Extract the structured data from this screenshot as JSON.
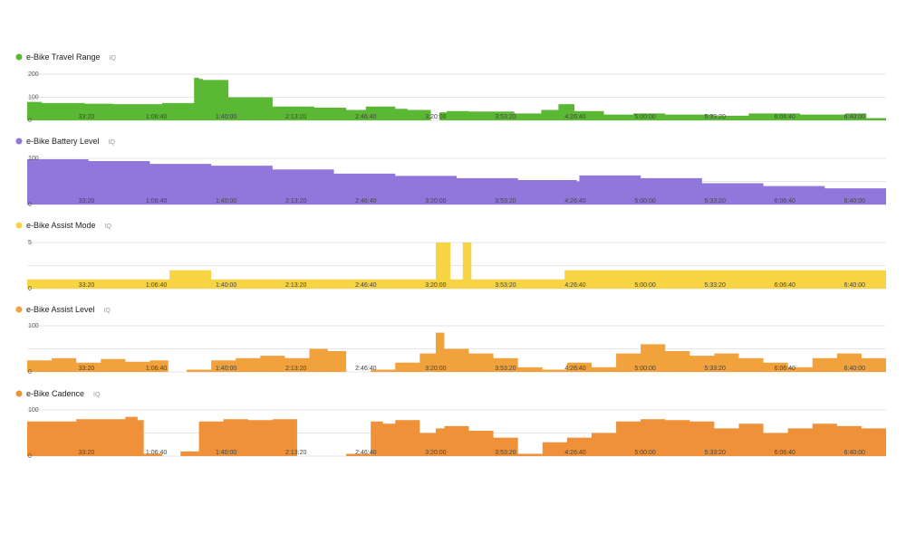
{
  "chart_data": [
    {
      "type": "area",
      "title": "e-Bike Travel Range",
      "badge": "IQ",
      "color": "#5bb834",
      "ylim": [
        0,
        200
      ],
      "yticks": [
        "0",
        "100",
        "200"
      ],
      "xticks": [
        "33:20",
        "1:06:40",
        "1:40:00",
        "2:13:20",
        "2:46:40",
        "3:20:00",
        "3:53:20",
        "4:26:40",
        "5:00:00",
        "5:33:20",
        "6:06:40",
        "6:40:00"
      ],
      "xlim": [
        0,
        7000
      ],
      "x": [
        0,
        120,
        470,
        700,
        1100,
        1360,
        1400,
        1430,
        1640,
        2000,
        2340,
        2600,
        2760,
        3000,
        3100,
        3290,
        3360,
        3420,
        3600,
        3970,
        4190,
        4330,
        4460,
        4700,
        4940,
        5200,
        5600,
        5880,
        6300,
        6670,
        6840,
        7000
      ],
      "values": [
        80,
        75,
        72,
        70,
        75,
        185,
        180,
        175,
        100,
        60,
        55,
        45,
        60,
        50,
        45,
        0,
        35,
        40,
        38,
        30,
        45,
        70,
        40,
        25,
        30,
        25,
        20,
        30,
        25,
        30,
        10,
        40
      ]
    },
    {
      "type": "area",
      "title": "e-Bike Battery Level",
      "badge": "IQ",
      "color": "#9176dc",
      "ylim": [
        0,
        100
      ],
      "yticks": [
        "0",
        "100"
      ],
      "xticks": [
        "33:20",
        "1:06:40",
        "1:40:00",
        "2:13:20",
        "2:46:40",
        "3:20:00",
        "3:53:20",
        "4:26:40",
        "5:00:00",
        "5:33:20",
        "6:06:40",
        "6:40:00"
      ],
      "xlim": [
        0,
        7000
      ],
      "x": [
        0,
        500,
        1000,
        1500,
        2000,
        2500,
        3000,
        3500,
        4000,
        4480,
        4500,
        5000,
        5500,
        6000,
        6500,
        7000
      ],
      "values": [
        98,
        94,
        88,
        84,
        76,
        67,
        62,
        57,
        53,
        50,
        63,
        57,
        46,
        40,
        35,
        28
      ]
    },
    {
      "type": "area",
      "title": "e-Bike Assist Mode",
      "badge": "IQ",
      "color": "#f7d443",
      "ylim": [
        0,
        5
      ],
      "yticks": [
        "0",
        "5"
      ],
      "xticks": [
        "33:20",
        "1:06:40",
        "1:40:00",
        "2:13:20",
        "2:46:40",
        "3:20:00",
        "3:53:20",
        "4:26:40",
        "5:00:00",
        "5:33:20",
        "6:06:40",
        "6:40:00"
      ],
      "xlim": [
        0,
        7000
      ],
      "x": [
        0,
        1160,
        1300,
        1500,
        2000,
        2600,
        3200,
        3330,
        3380,
        3450,
        3550,
        3620,
        3800,
        4200,
        4380,
        4650,
        5000,
        5500,
        6000,
        6700,
        7000
      ],
      "values": [
        1,
        2,
        2,
        1,
        1,
        1,
        1,
        5,
        5,
        1,
        5,
        1,
        1,
        1,
        2,
        2,
        2,
        2,
        2,
        2,
        1
      ]
    },
    {
      "type": "area",
      "title": "e-Bike Assist Level",
      "badge": "IQ",
      "color": "#f1a23c",
      "ylim": [
        0,
        100
      ],
      "yticks": [
        "0",
        "100"
      ],
      "xticks": [
        "33:20",
        "1:06:40",
        "1:40:00",
        "2:13:20",
        "2:46:40",
        "3:20:00",
        "3:53:20",
        "4:26:40",
        "5:00:00",
        "5:33:20",
        "6:06:40",
        "6:40:00"
      ],
      "xlim": [
        0,
        7000
      ],
      "x": [
        0,
        200,
        400,
        600,
        800,
        1000,
        1150,
        1300,
        1500,
        1700,
        1900,
        2100,
        2300,
        2450,
        2600,
        2800,
        3000,
        3200,
        3330,
        3400,
        3600,
        3800,
        4000,
        4200,
        4400,
        4600,
        4800,
        5000,
        5200,
        5400,
        5600,
        5800,
        6000,
        6200,
        6400,
        6600,
        6800,
        7000
      ],
      "values": [
        25,
        30,
        20,
        28,
        22,
        25,
        0,
        5,
        25,
        30,
        35,
        30,
        50,
        45,
        0,
        5,
        20,
        40,
        85,
        50,
        40,
        30,
        10,
        5,
        20,
        10,
        40,
        60,
        45,
        35,
        40,
        30,
        20,
        10,
        30,
        40,
        30,
        20
      ]
    },
    {
      "type": "area",
      "title": "e-Bike Cadence",
      "badge": "IQ",
      "color": "#ee9138",
      "ylim": [
        0,
        100
      ],
      "yticks": [
        "0",
        "100"
      ],
      "xticks": [
        "33:20",
        "1:06:40",
        "1:40:00",
        "2:13:20",
        "2:46:40",
        "3:20:00",
        "3:53:20",
        "4:26:40",
        "5:00:00",
        "5:33:20",
        "6:06:40",
        "6:40:00"
      ],
      "xlim": [
        0,
        7000
      ],
      "x": [
        0,
        400,
        800,
        900,
        950,
        1100,
        1250,
        1400,
        1600,
        1800,
        2000,
        2200,
        2450,
        2600,
        2800,
        2900,
        3000,
        3200,
        3330,
        3400,
        3600,
        3800,
        4000,
        4200,
        4400,
        4600,
        4800,
        5000,
        5200,
        5400,
        5600,
        5800,
        6000,
        6200,
        6400,
        6600,
        6800,
        7000
      ],
      "values": [
        75,
        80,
        85,
        78,
        5,
        0,
        10,
        75,
        80,
        78,
        80,
        0,
        0,
        5,
        75,
        70,
        78,
        50,
        60,
        65,
        55,
        40,
        5,
        30,
        40,
        50,
        75,
        80,
        78,
        75,
        60,
        70,
        50,
        60,
        70,
        65,
        60,
        70
      ]
    }
  ]
}
